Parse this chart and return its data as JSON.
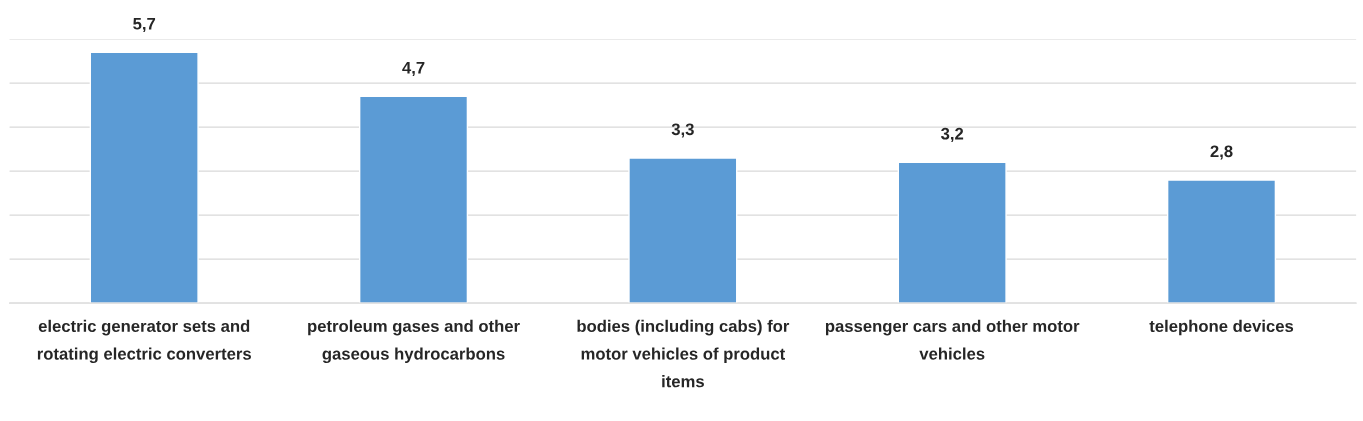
{
  "chart_data": {
    "type": "bar",
    "categories": [
      "electric generator sets and rotating electric converters",
      "petroleum gases and other gaseous hydrocarbons",
      "bodies (including cabs) for motor vehicles of product items",
      "passenger cars and other motor vehicles",
      "telephone devices"
    ],
    "values": [
      5.7,
      4.7,
      3.3,
      3.2,
      2.8
    ],
    "value_labels": [
      "5,7",
      "4,7",
      "3,3",
      "3,2",
      "2,8"
    ],
    "color": "#5b9bd5",
    "ylim": [
      0,
      6
    ],
    "yticks": [
      {
        "value": 0,
        "label": null
      },
      {
        "value": 1,
        "label": null
      },
      {
        "value": 2,
        "label": null
      },
      {
        "value": 3,
        "label": null
      },
      {
        "value": 4,
        "label": null
      },
      {
        "value": 5,
        "label": null
      },
      {
        "value": 6,
        "label": null
      }
    ],
    "tick_labels": "x",
    "grid": "y",
    "legend": false
  }
}
